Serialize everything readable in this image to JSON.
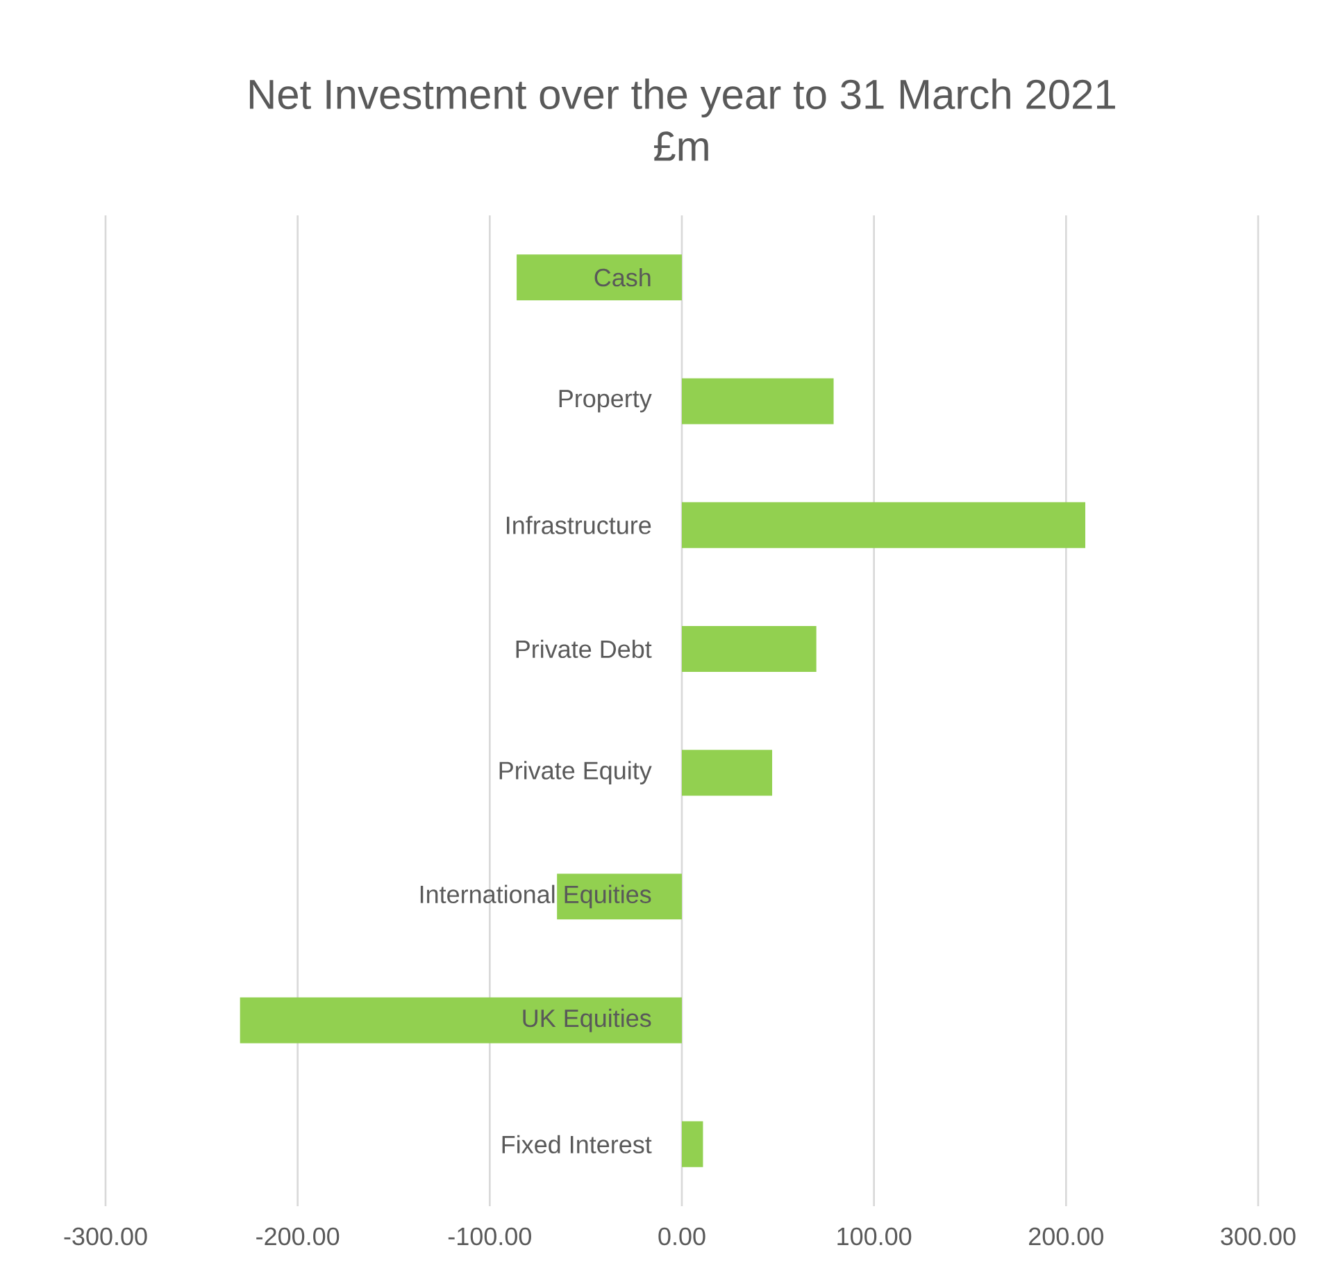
{
  "chart_data": {
    "type": "bar",
    "orientation": "horizontal",
    "title": "Net Investment over the year to 31 March 2021",
    "subtitle": "£m",
    "categories": [
      "Cash",
      "Property",
      "Infrastructure",
      "Private Debt",
      "Private Equity",
      "International Equities",
      "UK Equities",
      "Fixed Interest"
    ],
    "values": [
      -86,
      79,
      210,
      70,
      47,
      -65,
      -230,
      11
    ],
    "color": "#92d050",
    "xlim": [
      -300,
      300
    ],
    "xticks": [
      {
        "value": -300,
        "label": "-300.00"
      },
      {
        "value": -200,
        "label": "-200.00"
      },
      {
        "value": -100,
        "label": "-100.00"
      },
      {
        "value": 0,
        "label": "0.00"
      },
      {
        "value": 100,
        "label": "100.00"
      },
      {
        "value": 200,
        "label": "200.00"
      },
      {
        "value": 300,
        "label": "300.00"
      }
    ],
    "grid": "x"
  }
}
